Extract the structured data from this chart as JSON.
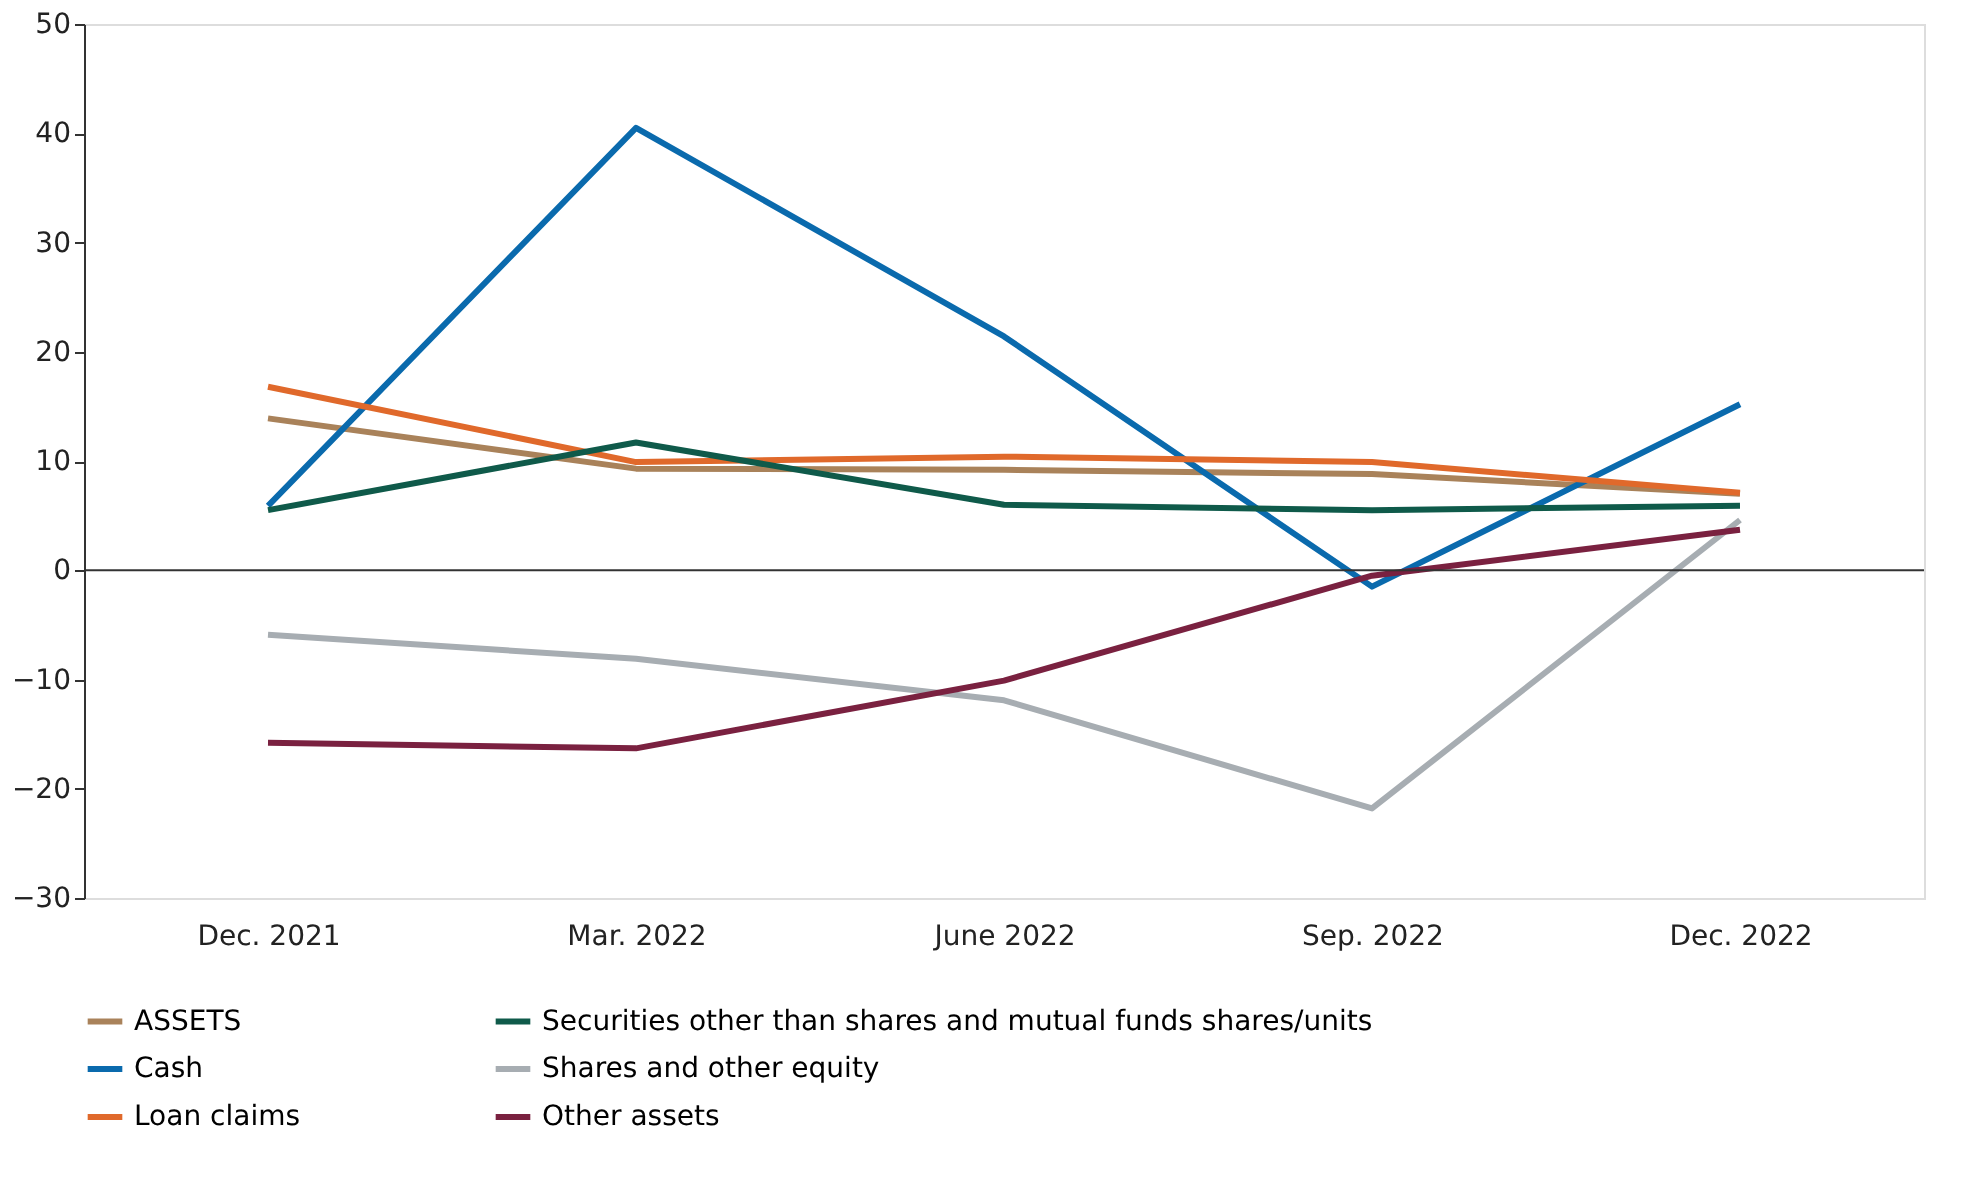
{
  "chart_data": {
    "type": "line",
    "categories": [
      "Dec. 2021",
      "Mar. 2022",
      "June 2022",
      "Sep. 2022",
      "Dec. 2022"
    ],
    "series": [
      {
        "name": "ASSETS",
        "color": "#a9825a",
        "values": [
          13.9,
          9.3,
          9.2,
          8.8,
          7.0
        ]
      },
      {
        "name": "Cash",
        "color": "#0a6aad",
        "values": [
          5.9,
          40.5,
          21.4,
          -1.5,
          15.2
        ]
      },
      {
        "name": "Loan claims",
        "color": "#e0692b",
        "values": [
          16.8,
          9.9,
          10.4,
          9.9,
          7.1
        ]
      },
      {
        "name": "Securities other than shares and mutual funds shares/units",
        "color": "#0f5a4a",
        "values": [
          5.5,
          11.7,
          6.0,
          5.5,
          5.9
        ]
      },
      {
        "name": "Shares and other equity",
        "color": "#a7adb2",
        "values": [
          -5.9,
          -8.1,
          -11.9,
          -21.8,
          4.6
        ]
      },
      {
        "name": "Other assets",
        "color": "#7a2140",
        "values": [
          -15.8,
          -16.3,
          -10.1,
          -0.5,
          3.7
        ]
      }
    ],
    "ylim": [
      -30,
      50
    ],
    "yticks": [
      -30,
      -20,
      -10,
      0,
      10,
      20,
      30,
      40,
      50
    ],
    "ref_lines": [
      {
        "axis": "y",
        "value": 0,
        "color": "#333333"
      }
    ],
    "grid": false,
    "legend": "bottom",
    "marker": "none",
    "line_style": "solid"
  }
}
